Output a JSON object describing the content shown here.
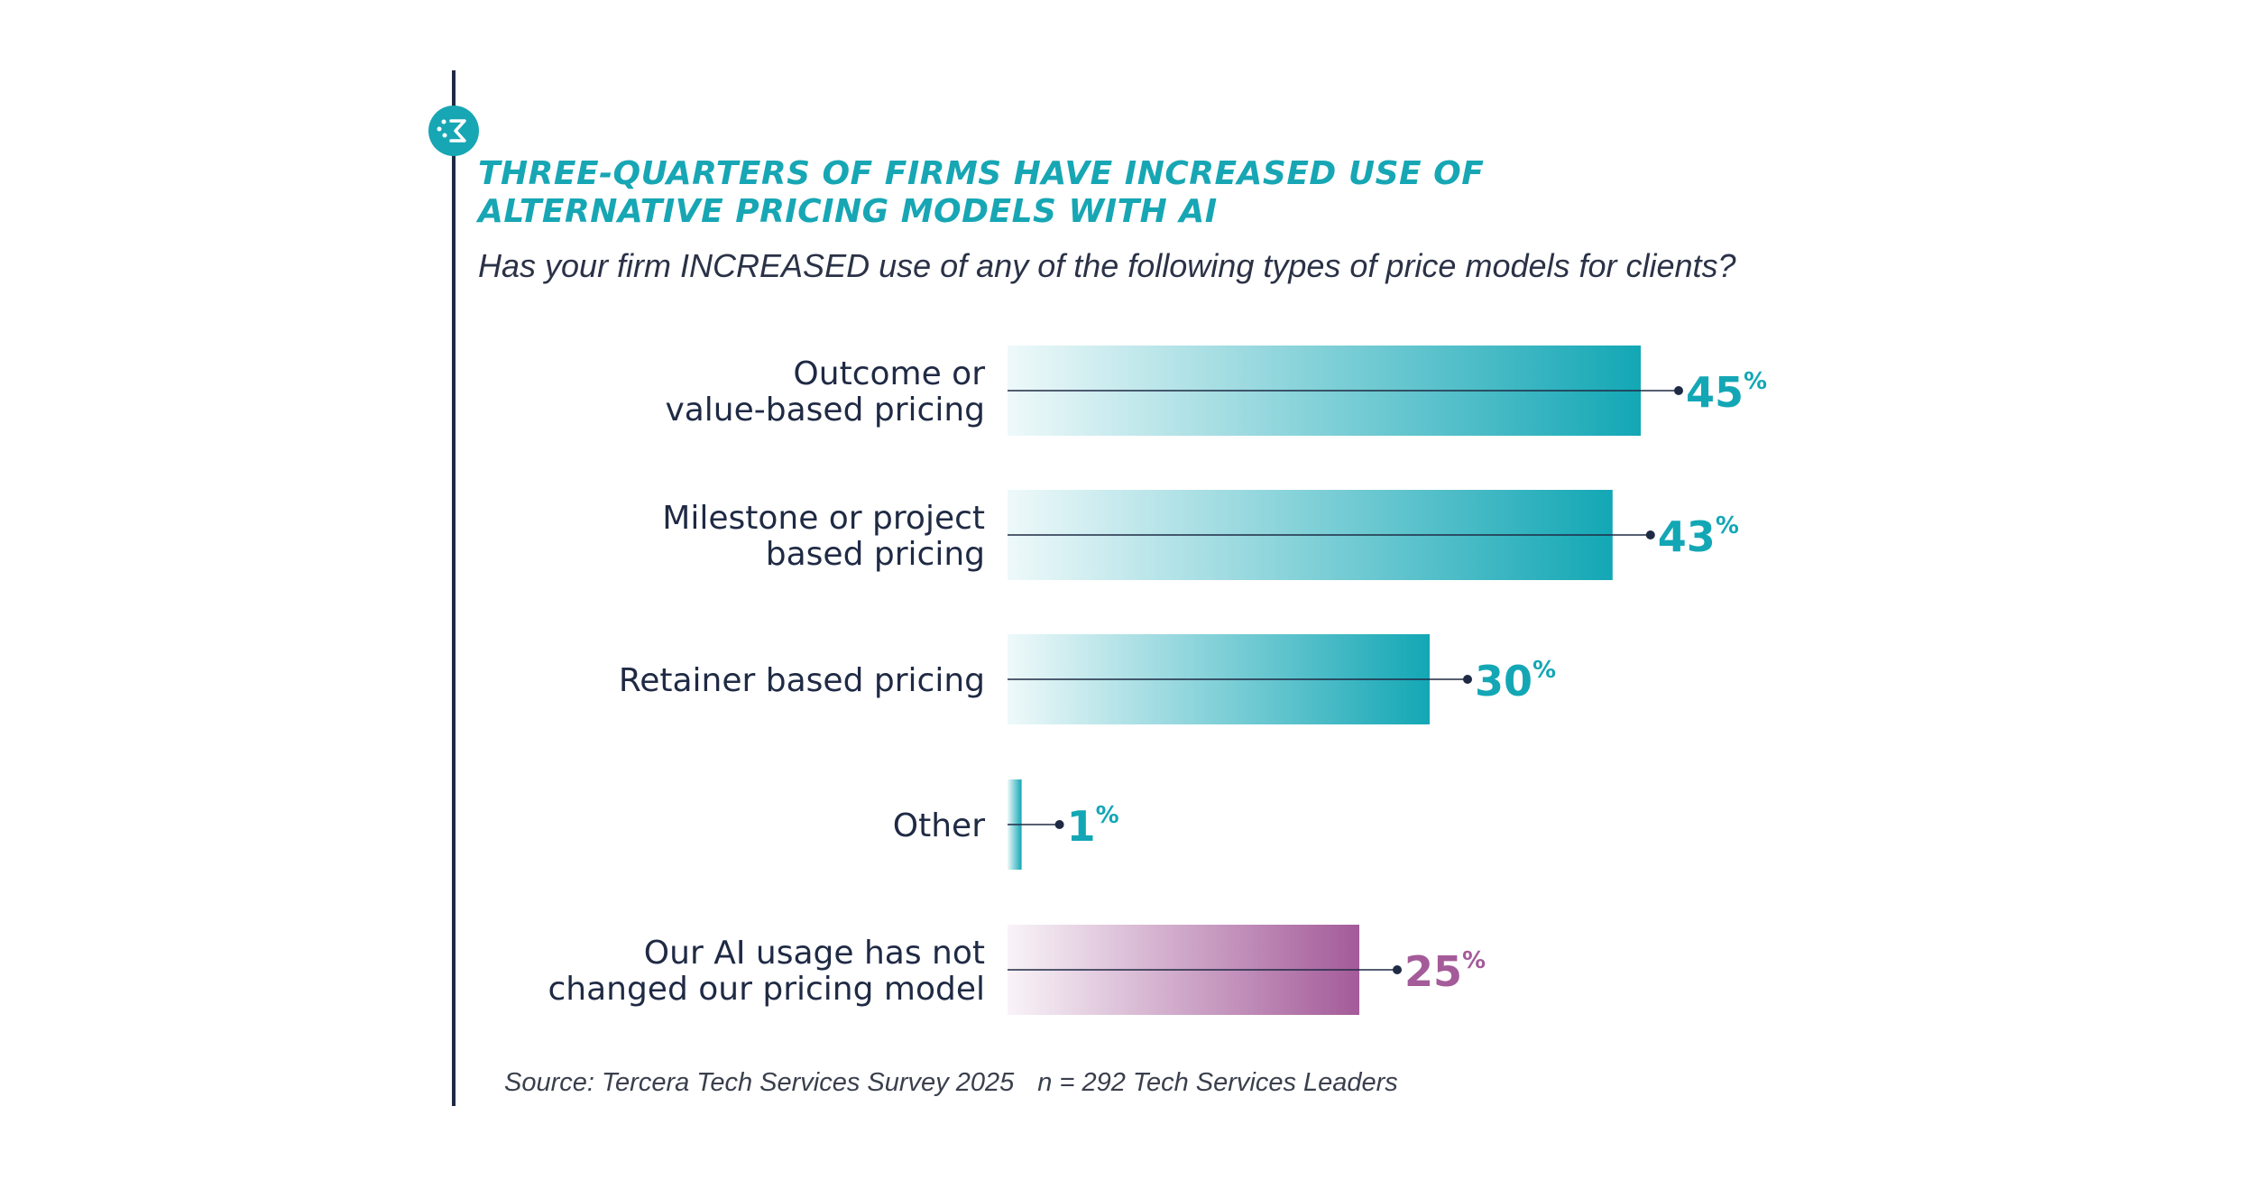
{
  "header": {
    "title_line1": "THREE-QUARTERS OF FIRMS HAVE INCREASED USE OF",
    "title_line2": "ALTERNATIVE PRICING MODELS WITH AI",
    "subtitle": "Has your firm INCREASED use of any of the following types of price models for clients?"
  },
  "footer": {
    "source": "Source: Tercera Tech Services Survey 2025",
    "sample": "n = 292 Tech Services Leaders"
  },
  "colors": {
    "teal": "#13a7b5",
    "purple": "#a45b99",
    "navy": "#1f2a44"
  },
  "chart_data": {
    "type": "bar",
    "orientation": "horizontal",
    "unit": "%",
    "xlim": [
      0,
      50
    ],
    "grid": false,
    "legend": "none",
    "categories": [
      [
        "Outcome or",
        "value-based pricing"
      ],
      [
        "Milestone or project",
        "based pricing"
      ],
      [
        "Retainer based pricing"
      ],
      [
        "Other"
      ],
      [
        "Our AI usage has not",
        "changed our pricing model"
      ]
    ],
    "values": [
      45,
      43,
      30,
      1,
      25
    ],
    "value_labels": [
      "45",
      "43",
      "30",
      "1",
      "25"
    ],
    "bar_colors": [
      "#13a7b5",
      "#13a7b5",
      "#13a7b5",
      "#13a7b5",
      "#a45b99"
    ]
  }
}
